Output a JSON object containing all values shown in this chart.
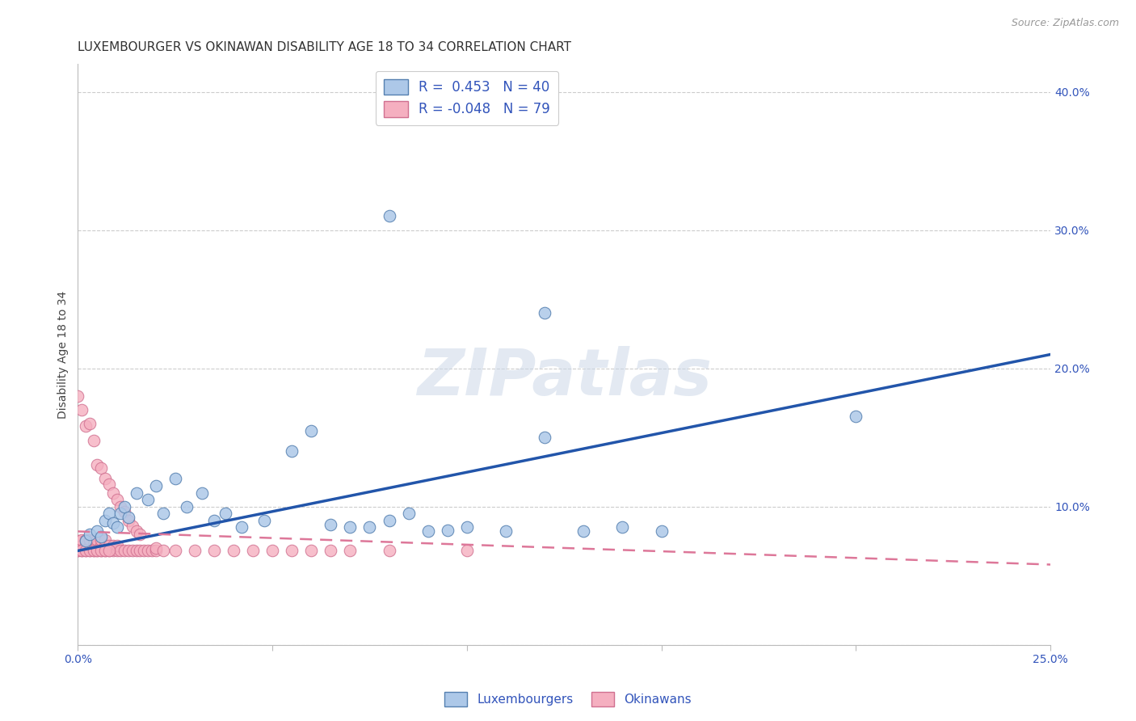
{
  "title": "LUXEMBOURGER VS OKINAWAN DISABILITY AGE 18 TO 34 CORRELATION CHART",
  "source": "Source: ZipAtlas.com",
  "ylabel": "Disability Age 18 to 34",
  "xlim": [
    0.0,
    0.25
  ],
  "ylim": [
    0.0,
    0.42
  ],
  "xticks": [
    0.0,
    0.05,
    0.1,
    0.15,
    0.2,
    0.25
  ],
  "yticks": [
    0.0,
    0.1,
    0.2,
    0.3,
    0.4
  ],
  "xtick_labels": [
    "0.0%",
    "",
    "",
    "",
    "",
    "25.0%"
  ],
  "ytick_labels": [
    "",
    "10.0%",
    "20.0%",
    "30.0%",
    "40.0%"
  ],
  "blue_R": 0.453,
  "blue_N": 40,
  "pink_R": -0.048,
  "pink_N": 79,
  "blue_color": "#adc8e8",
  "pink_color": "#f5afc0",
  "blue_edge_color": "#5580b0",
  "pink_edge_color": "#d07090",
  "blue_line_color": "#2255aa",
  "pink_line_color": "#dd7799",
  "background_color": "#ffffff",
  "grid_color": "#cccccc",
  "axis_color": "#3355bb",
  "legend_label_blue": "Luxembourgers",
  "legend_label_pink": "Okinawans",
  "blue_scatter_x": [
    0.002,
    0.003,
    0.005,
    0.006,
    0.007,
    0.008,
    0.009,
    0.01,
    0.011,
    0.012,
    0.013,
    0.015,
    0.018,
    0.02,
    0.022,
    0.025,
    0.028,
    0.032,
    0.035,
    0.038,
    0.042,
    0.048,
    0.055,
    0.06,
    0.065,
    0.07,
    0.075,
    0.08,
    0.085,
    0.09,
    0.095,
    0.1,
    0.11,
    0.12,
    0.13,
    0.14,
    0.15,
    0.2,
    0.08,
    0.12
  ],
  "blue_scatter_y": [
    0.075,
    0.08,
    0.082,
    0.078,
    0.09,
    0.095,
    0.088,
    0.085,
    0.095,
    0.1,
    0.092,
    0.11,
    0.105,
    0.115,
    0.095,
    0.12,
    0.1,
    0.11,
    0.09,
    0.095,
    0.085,
    0.09,
    0.14,
    0.155,
    0.087,
    0.085,
    0.085,
    0.09,
    0.095,
    0.082,
    0.083,
    0.085,
    0.082,
    0.15,
    0.082,
    0.085,
    0.082,
    0.165,
    0.31,
    0.24
  ],
  "pink_scatter_x": [
    0.0,
    0.0,
    0.0,
    0.001,
    0.001,
    0.001,
    0.001,
    0.002,
    0.002,
    0.002,
    0.002,
    0.003,
    0.003,
    0.003,
    0.003,
    0.004,
    0.004,
    0.004,
    0.004,
    0.005,
    0.005,
    0.005,
    0.005,
    0.006,
    0.006,
    0.006,
    0.006,
    0.007,
    0.007,
    0.007,
    0.007,
    0.008,
    0.008,
    0.008,
    0.009,
    0.009,
    0.009,
    0.01,
    0.01,
    0.01,
    0.011,
    0.011,
    0.012,
    0.012,
    0.013,
    0.013,
    0.014,
    0.014,
    0.015,
    0.015,
    0.016,
    0.016,
    0.017,
    0.018,
    0.019,
    0.02,
    0.02,
    0.022,
    0.025,
    0.03,
    0.035,
    0.04,
    0.045,
    0.05,
    0.055,
    0.06,
    0.065,
    0.07,
    0.08,
    0.1,
    0.0,
    0.001,
    0.002,
    0.003,
    0.004,
    0.005,
    0.006,
    0.007,
    0.008
  ],
  "pink_scatter_y": [
    0.068,
    0.075,
    0.18,
    0.068,
    0.072,
    0.076,
    0.17,
    0.068,
    0.072,
    0.076,
    0.158,
    0.068,
    0.072,
    0.076,
    0.16,
    0.068,
    0.072,
    0.076,
    0.148,
    0.068,
    0.072,
    0.076,
    0.13,
    0.068,
    0.072,
    0.076,
    0.128,
    0.068,
    0.072,
    0.076,
    0.12,
    0.068,
    0.072,
    0.116,
    0.068,
    0.072,
    0.11,
    0.068,
    0.072,
    0.105,
    0.068,
    0.1,
    0.068,
    0.096,
    0.068,
    0.09,
    0.068,
    0.086,
    0.068,
    0.082,
    0.068,
    0.08,
    0.068,
    0.068,
    0.068,
    0.068,
    0.07,
    0.068,
    0.068,
    0.068,
    0.068,
    0.068,
    0.068,
    0.068,
    0.068,
    0.068,
    0.068,
    0.068,
    0.068,
    0.068,
    0.068,
    0.068,
    0.068,
    0.068,
    0.068,
    0.068,
    0.068,
    0.068,
    0.068
  ],
  "blue_trendline_x": [
    0.0,
    0.25
  ],
  "blue_trendline_y": [
    0.068,
    0.21
  ],
  "pink_trendline_x": [
    0.0,
    0.25
  ],
  "pink_trendline_y": [
    0.082,
    0.058
  ],
  "watermark_text": "ZIPatlas",
  "title_fontsize": 11,
  "axis_label_fontsize": 10,
  "tick_fontsize": 10,
  "scatter_size": 110
}
